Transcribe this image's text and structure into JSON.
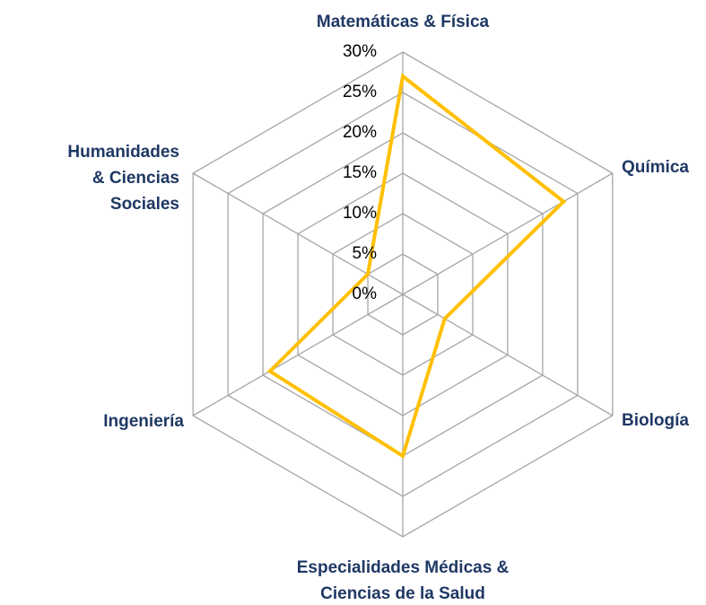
{
  "chart_data": {
    "type": "radar",
    "categories": [
      "Matemáticas & Física",
      "Química",
      "Biología",
      "Especialidades Médicas & Ciencias de la Salud",
      "Ingeniería",
      "Humanidades & Ciencias Sociales"
    ],
    "series": [
      {
        "name": null,
        "color": "#ffc000",
        "values": [
          27,
          23,
          6,
          20,
          19,
          5
        ]
      }
    ],
    "ylim": [
      0,
      30
    ],
    "yticks": [
      {
        "value": 0,
        "label": "0%"
      },
      {
        "value": 5,
        "label": "5%"
      },
      {
        "value": 10,
        "label": "10%"
      },
      {
        "value": 15,
        "label": "15%"
      },
      {
        "value": 20,
        "label": "20%"
      },
      {
        "value": 25,
        "label": "25%"
      },
      {
        "value": 30,
        "label": "30%"
      }
    ],
    "grid": true
  }
}
